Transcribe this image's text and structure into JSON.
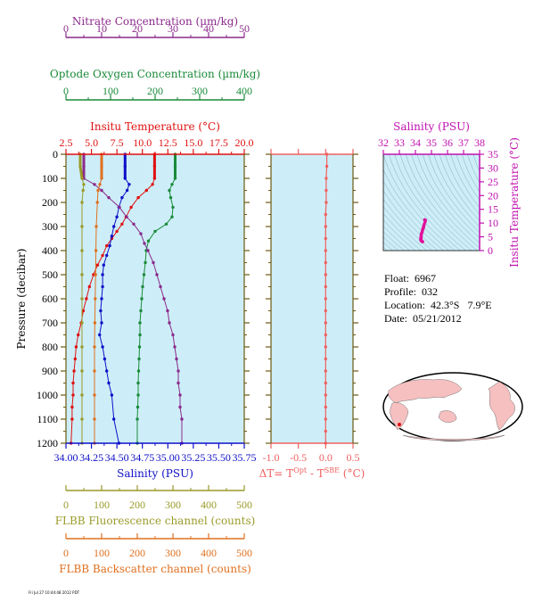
{
  "info": {
    "float_line": "Float:  6967",
    "profile_line": "Profile:  032",
    "location_line": "Location:  42.3°S   7.9°E",
    "date_line": "Date:  05/21/2012"
  },
  "footnote": "Fri Jul 27 10:44:48 2012 PDT",
  "chart_data": [
    {
      "id": "profile",
      "type": "line",
      "ylabel": "Pressure (decibar)",
      "ylim": [
        1200,
        0
      ],
      "yticks": [
        0,
        100,
        200,
        300,
        400,
        500,
        600,
        700,
        800,
        900,
        1000,
        1100,
        1200
      ],
      "axes": {
        "nitrate": {
          "label": "Nitrate Concentration (µm/kg)",
          "color": "#8b2a8b",
          "range": [
            0,
            50
          ],
          "ticks": [
            "0",
            "10",
            "20",
            "30",
            "40",
            "50"
          ]
        },
        "oxygen": {
          "label": "Optode Oxygen Concentration (µm/kg)",
          "color": "#1a8a3a",
          "range": [
            0,
            400
          ],
          "ticks": [
            "0",
            "100",
            "200",
            "300",
            "400"
          ]
        },
        "temperature": {
          "label": "Insitu Temperature (°C)",
          "color": "#e01010",
          "range": [
            2.5,
            20
          ],
          "ticks": [
            "2.5",
            "5.0",
            "7.5",
            "10.0",
            "12.5",
            "15.0",
            "17.5",
            "20.0"
          ]
        },
        "salinity": {
          "label": "Salinity (PSU)",
          "color": "#1010c8",
          "range": [
            34.0,
            35.75
          ],
          "ticks": [
            "34.00",
            "34.25",
            "34.50",
            "34.75",
            "35.00",
            "35.25",
            "35.50",
            "35.75"
          ]
        },
        "fluorescence": {
          "label": "FLBB Fluorescence channel (counts)",
          "color": "#9a9a2a",
          "range": [
            0,
            500
          ],
          "ticks": [
            "0",
            "100",
            "200",
            "300",
            "400",
            "500"
          ]
        },
        "backscatter": {
          "label": "FLBB Backscatter channel (counts)",
          "color": "#e07020",
          "range": [
            0,
            500
          ],
          "ticks": [
            "0",
            "100",
            "200",
            "300",
            "400",
            "500"
          ]
        }
      },
      "series": [
        {
          "key": "temperature",
          "color": "#e01010",
          "points": [
            [
              11.2,
              0
            ],
            [
              11.2,
              50
            ],
            [
              11.2,
              100
            ],
            [
              11.0,
              125
            ],
            [
              10.4,
              150
            ],
            [
              9.6,
              180
            ],
            [
              8.9,
              220
            ],
            [
              8.4,
              260
            ],
            [
              8.0,
              290
            ],
            [
              7.5,
              320
            ],
            [
              7.0,
              350
            ],
            [
              6.5,
              380
            ],
            [
              6.1,
              420
            ],
            [
              5.6,
              460
            ],
            [
              5.2,
              500
            ],
            [
              4.8,
              550
            ],
            [
              4.5,
              600
            ],
            [
              4.2,
              650
            ],
            [
              4.0,
              700
            ],
            [
              3.7,
              750
            ],
            [
              3.5,
              800
            ],
            [
              3.4,
              850
            ],
            [
              3.3,
              900
            ],
            [
              3.2,
              950
            ],
            [
              3.2,
              1000
            ],
            [
              3.1,
              1050
            ],
            [
              3.1,
              1100
            ],
            [
              3.0,
              1200
            ]
          ]
        },
        {
          "key": "salinity",
          "color": "#1010c8",
          "points": [
            [
              34.58,
              0
            ],
            [
              34.58,
              50
            ],
            [
              34.58,
              100
            ],
            [
              34.62,
              125
            ],
            [
              34.6,
              150
            ],
            [
              34.55,
              180
            ],
            [
              34.52,
              220
            ],
            [
              34.5,
              260
            ],
            [
              34.47,
              300
            ],
            [
              34.45,
              340
            ],
            [
              34.43,
              380
            ],
            [
              34.4,
              420
            ],
            [
              34.37,
              460
            ],
            [
              34.36,
              500
            ],
            [
              34.36,
              550
            ],
            [
              34.35,
              600
            ],
            [
              34.34,
              650
            ],
            [
              34.35,
              700
            ],
            [
              34.33,
              750
            ],
            [
              34.36,
              800
            ],
            [
              34.38,
              850
            ],
            [
              34.4,
              900
            ],
            [
              34.42,
              950
            ],
            [
              34.45,
              1000
            ],
            [
              34.47,
              1100
            ],
            [
              34.52,
              1200
            ]
          ]
        },
        {
          "key": "oxygen",
          "color": "#1a8a3a",
          "points": [
            [
              245,
              0
            ],
            [
              245,
              50
            ],
            [
              245,
              100
            ],
            [
              238,
              125
            ],
            [
              232,
              150
            ],
            [
              235,
              180
            ],
            [
              240,
              220
            ],
            [
              238,
              260
            ],
            [
              225,
              290
            ],
            [
              200,
              320
            ],
            [
              185,
              360
            ],
            [
              180,
              400
            ],
            [
              178,
              450
            ],
            [
              175,
              500
            ],
            [
              172,
              550
            ],
            [
              170,
              600
            ],
            [
              168,
              650
            ],
            [
              166,
              700
            ],
            [
              166,
              750
            ],
            [
              165,
              800
            ],
            [
              164,
              850
            ],
            [
              163,
              900
            ],
            [
              162,
              950
            ],
            [
              162,
              1000
            ],
            [
              161,
              1050
            ],
            [
              160,
              1100
            ],
            [
              160,
              1200
            ]
          ]
        },
        {
          "key": "nitrate",
          "color": "#8b2a8b",
          "points": [
            [
              5,
              0
            ],
            [
              5,
              50
            ],
            [
              5,
              100
            ],
            [
              8,
              125
            ],
            [
              10,
              150
            ],
            [
              12,
              180
            ],
            [
              15,
              220
            ],
            [
              17,
              260
            ],
            [
              19,
              290
            ],
            [
              21,
              330
            ],
            [
              22,
              370
            ],
            [
              23,
              400
            ],
            [
              24.5,
              450
            ],
            [
              25.5,
              500
            ],
            [
              26.5,
              550
            ],
            [
              27.5,
              600
            ],
            [
              28.5,
              650
            ],
            [
              29,
              700
            ],
            [
              30,
              750
            ],
            [
              30.5,
              800
            ],
            [
              31,
              850
            ],
            [
              31.5,
              900
            ],
            [
              31.5,
              950
            ],
            [
              32,
              1000
            ],
            [
              32,
              1050
            ],
            [
              32.5,
              1100
            ],
            [
              32.5,
              1200
            ]
          ]
        },
        {
          "key": "fluorescence",
          "color": "#9a9a2a",
          "points": [
            [
              40,
              0
            ],
            [
              40,
              50
            ],
            [
              45,
              100
            ],
            [
              50,
              125
            ],
            [
              48,
              150
            ],
            [
              45,
              200
            ],
            [
              45,
              300
            ],
            [
              45,
              400
            ],
            [
              45,
              500
            ],
            [
              45,
              600
            ],
            [
              45,
              700
            ],
            [
              45,
              800
            ],
            [
              45,
              900
            ],
            [
              45,
              1000
            ],
            [
              45,
              1100
            ],
            [
              45,
              1200
            ]
          ]
        },
        {
          "key": "backscatter",
          "color": "#e07020",
          "points": [
            [
              100,
              0
            ],
            [
              100,
              50
            ],
            [
              100,
              100
            ],
            [
              95,
              125
            ],
            [
              90,
              150
            ],
            [
              88,
              200
            ],
            [
              85,
              300
            ],
            [
              84,
              400
            ],
            [
              83,
              500
            ],
            [
              82,
              600
            ],
            [
              81,
              700
            ],
            [
              80,
              800
            ],
            [
              80,
              900
            ],
            [
              80,
              1000
            ],
            [
              80,
              1100
            ],
            [
              80,
              1200
            ]
          ]
        }
      ]
    },
    {
      "id": "delta",
      "type": "line",
      "xlabel": "ΔT= T",
      "xlabel_sup1": "Opt",
      "xlabel_mid": " - T",
      "xlabel_sup2": "SBE",
      "xlabel_tail": " (°C)",
      "xlim": [
        -1.0,
        0.5
      ],
      "xticks": [
        "-1.0",
        "-0.5",
        "0.0",
        "0.5"
      ],
      "ylim": [
        1200,
        0
      ],
      "color": "#f06060",
      "points": [
        [
          0.02,
          0
        ],
        [
          0.02,
          50
        ],
        [
          0.01,
          100
        ],
        [
          0.01,
          150
        ],
        [
          0.01,
          200
        ],
        [
          0.0,
          250
        ],
        [
          0.0,
          300
        ],
        [
          0.0,
          350
        ],
        [
          0.0,
          400
        ],
        [
          0.0,
          450
        ],
        [
          0.0,
          500
        ],
        [
          0.0,
          550
        ],
        [
          0.0,
          600
        ],
        [
          0.0,
          650
        ],
        [
          0.0,
          700
        ],
        [
          0.0,
          750
        ],
        [
          0.0,
          800
        ],
        [
          0.0,
          850
        ],
        [
          0.0,
          900
        ],
        [
          0.0,
          950
        ],
        [
          0.0,
          1000
        ],
        [
          0.0,
          1050
        ],
        [
          0.0,
          1100
        ],
        [
          0.0,
          1150
        ],
        [
          0.0,
          1200
        ]
      ]
    },
    {
      "id": "ts",
      "type": "scatter",
      "title": "Salinity (PSU)",
      "ylabel": "Insitu Temperature (°C)",
      "xlim": [
        32,
        38
      ],
      "ylim": [
        0,
        35
      ],
      "xticks": [
        "32",
        "33",
        "34",
        "35",
        "36",
        "37",
        "38"
      ],
      "yticks": [
        "0",
        "5",
        "10",
        "15",
        "20",
        "25",
        "30",
        "35"
      ],
      "color": "#e0109a",
      "points": [
        [
          34.58,
          11.2
        ],
        [
          34.62,
          11.0
        ],
        [
          34.6,
          10.4
        ],
        [
          34.55,
          9.6
        ],
        [
          34.52,
          8.9
        ],
        [
          34.5,
          8.4
        ],
        [
          34.47,
          8.0
        ],
        [
          34.45,
          7.5
        ],
        [
          34.43,
          7.0
        ],
        [
          34.4,
          6.5
        ],
        [
          34.37,
          6.1
        ],
        [
          34.36,
          5.6
        ],
        [
          34.36,
          5.2
        ],
        [
          34.35,
          4.8
        ],
        [
          34.34,
          4.5
        ],
        [
          34.35,
          4.2
        ],
        [
          34.33,
          4.0
        ],
        [
          34.36,
          3.7
        ],
        [
          34.38,
          3.5
        ],
        [
          34.4,
          3.4
        ],
        [
          34.42,
          3.3
        ],
        [
          34.45,
          3.2
        ]
      ]
    }
  ]
}
